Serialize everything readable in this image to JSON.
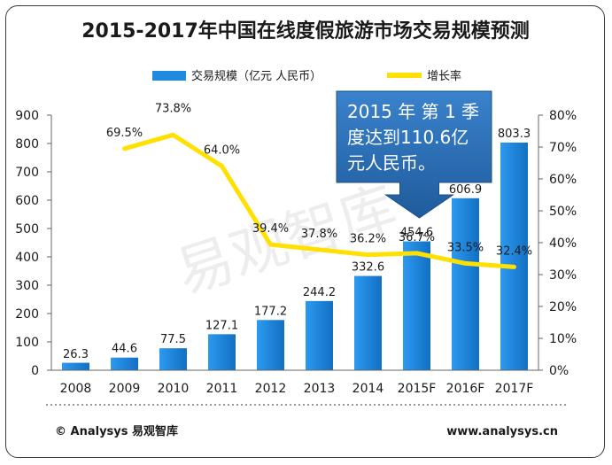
{
  "chart_data": {
    "type": "bar",
    "title": "2015-2017年中国在线度假旅游市场交易规模预测",
    "categories": [
      "2008",
      "2009",
      "2010",
      "2011",
      "2012",
      "2013",
      "2014",
      "2015F",
      "2016F",
      "2017F"
    ],
    "series": [
      {
        "name": "交易规模（亿元 人民币）",
        "type": "bar",
        "axis": "left",
        "values": [
          26.3,
          44.6,
          77.5,
          127.1,
          177.2,
          244.2,
          332.6,
          454.6,
          606.9,
          803.3
        ],
        "labels": [
          "26.3",
          "44.6",
          "77.5",
          "127.1",
          "177.2",
          "244.2",
          "332.6",
          "454.6",
          "606.9",
          "803.3"
        ]
      },
      {
        "name": "增长率",
        "type": "line",
        "axis": "right",
        "values": [
          null,
          69.5,
          73.8,
          64.0,
          39.4,
          37.8,
          36.2,
          36.7,
          33.5,
          32.4
        ],
        "labels": [
          "",
          "69.5%",
          "73.8%",
          "64.0%",
          "39.4%",
          "37.8%",
          "36.2%",
          "36.7%",
          "33.5%",
          "32.4%"
        ]
      }
    ],
    "y_left": {
      "min": 0,
      "max": 900,
      "ticks": [
        "0",
        "100",
        "200",
        "300",
        "400",
        "500",
        "600",
        "700",
        "800",
        "900"
      ]
    },
    "y_right": {
      "min": 0,
      "max": 80,
      "ticks": [
        "0%",
        "10%",
        "20%",
        "30%",
        "40%",
        "50%",
        "60%",
        "70%",
        "80%"
      ]
    },
    "grid": false,
    "legend": "top",
    "callout": {
      "text": [
        "2015 年 第 1 季",
        "度达到110.6亿",
        "元人民币。"
      ],
      "target": "2015F"
    },
    "watermark": "易观智库",
    "footer_left": "© Analysys 易观智库",
    "footer_right": "www.analysys.cn",
    "colors": {
      "bar": "#1e8be0",
      "line": "#ffe000",
      "callout": "#2a6db4",
      "text": "#1a1a1a"
    }
  }
}
